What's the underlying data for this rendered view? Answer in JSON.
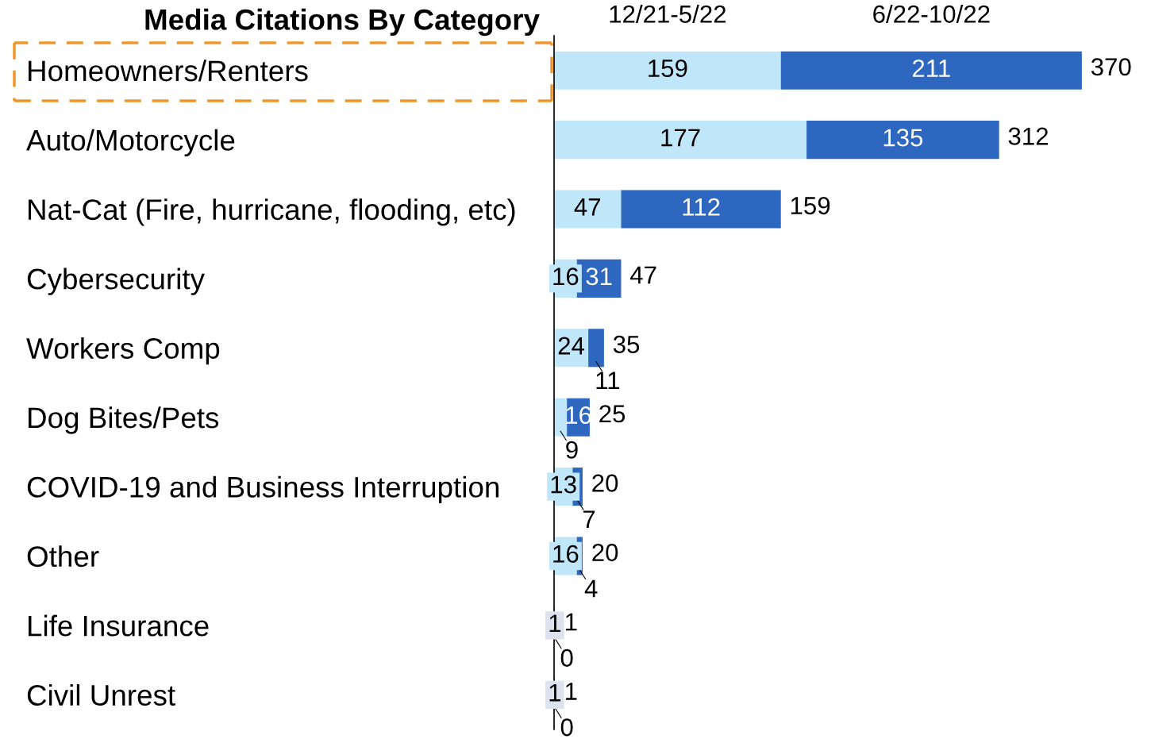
{
  "chart_data": {
    "type": "bar",
    "orientation": "horizontal",
    "stacked": true,
    "title": "Media Citations By Category",
    "categories": [
      "Homeowners/Renters",
      "Auto/Motorcycle",
      "Nat-Cat (Fire, hurricane, flooding, etc)",
      "Cybersecurity",
      "Workers Comp",
      "Dog Bites/Pets",
      "COVID-19 and Business Interruption",
      "Other",
      "Life Insurance",
      "Civil Unrest"
    ],
    "series": [
      {
        "name": "12/21-5/22",
        "color": "#c0e6fa",
        "colors": [
          "#c0e6fa",
          "#c0e6fa",
          "#c0e6fa",
          "#c0e6fa",
          "#c0e6fa",
          "#c0e6fa",
          "#c0e6fa",
          "#c0e6fa",
          "#dde3ee",
          "#dde3ee"
        ],
        "values": [
          159,
          177,
          47,
          16,
          24,
          9,
          13,
          16,
          1,
          1
        ]
      },
      {
        "name": "6/22-10/22",
        "color": "#2e67c0",
        "values": [
          211,
          135,
          112,
          31,
          11,
          16,
          7,
          4,
          0,
          0
        ]
      }
    ],
    "data_labels": true,
    "totals": [
      "370",
      "312",
      "159",
      "47",
      "35",
      "25",
      "20",
      "20",
      "1",
      "1"
    ],
    "grid": false,
    "legend": false
  }
}
